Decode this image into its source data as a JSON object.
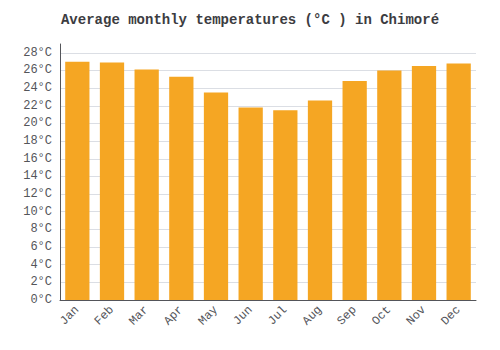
{
  "chart_data": {
    "type": "bar",
    "title": "Average monthly temperatures (°C ) in Chimoré",
    "categories": [
      "Jan",
      "Feb",
      "Mar",
      "Apr",
      "May",
      "Jun",
      "Jul",
      "Aug",
      "Sep",
      "Oct",
      "Nov",
      "Dec"
    ],
    "values": [
      27.0,
      26.9,
      26.1,
      25.3,
      23.5,
      21.8,
      21.5,
      22.6,
      24.8,
      26.0,
      26.5,
      26.8
    ],
    "color": "#F5A623",
    "ylim": [
      0,
      29
    ],
    "yticks": [
      {
        "value": 0,
        "label": "0°C"
      },
      {
        "value": 2,
        "label": "2°C"
      },
      {
        "value": 4,
        "label": "4°C"
      },
      {
        "value": 6,
        "label": "6°C"
      },
      {
        "value": 8,
        "label": "8°C"
      },
      {
        "value": 10,
        "label": "10°C"
      },
      {
        "value": 12,
        "label": "12°C"
      },
      {
        "value": 14,
        "label": "14°C"
      },
      {
        "value": 16,
        "label": "16°C"
      },
      {
        "value": 18,
        "label": "18°C"
      },
      {
        "value": 20,
        "label": "20°C"
      },
      {
        "value": 22,
        "label": "22°C"
      },
      {
        "value": 24,
        "label": "24°C"
      },
      {
        "value": 26,
        "label": "26°C"
      },
      {
        "value": 28,
        "label": "28°C"
      }
    ],
    "grid": true
  }
}
